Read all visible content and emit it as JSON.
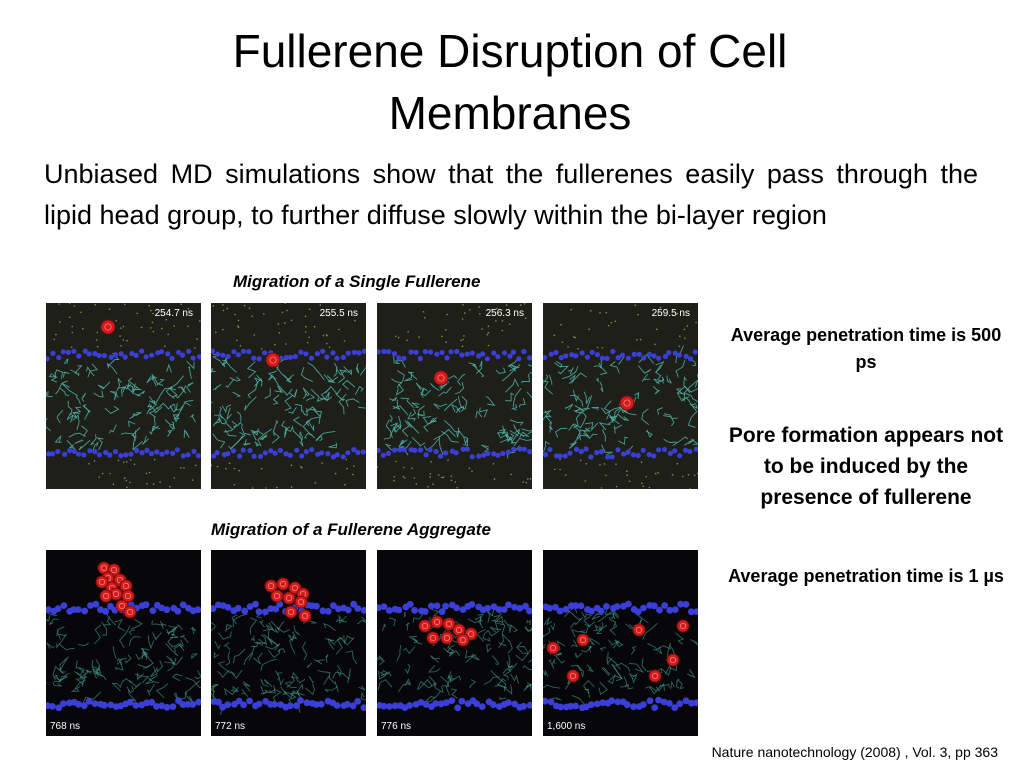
{
  "slide": {
    "title": "Fullerene Disruption of Cell Membranes",
    "body": "Unbiased MD simulations show that the fullerenes easily pass through the lipid head group, to further diffuse slowly within the bi-layer region",
    "caption_single": "Migration of a Single Fullerene",
    "caption_aggregate": "Migration of a Fullerene Aggregate",
    "single_times": [
      "254.7 ns",
      "255.5 ns",
      "256.3 ns",
      "259.5 ns"
    ],
    "aggregate_times": [
      "768 ns",
      "772 ns",
      "776 ns",
      "1,600 ns"
    ],
    "note_single": "Average penetration time is 500 ps",
    "note_pore": "Pore formation appears not to be induced by the presence of fullerene",
    "note_aggregate": "Average penetration time is 1 µs",
    "citation": "Nature nanotechnology (2008) , Vol. 3, pp 363"
  },
  "colors": {
    "head_group": "#3b3fd8",
    "lipid_tail": "#4fb5a8",
    "fullerene": "#d21c1c",
    "water_dots": "#8a8a4a"
  }
}
